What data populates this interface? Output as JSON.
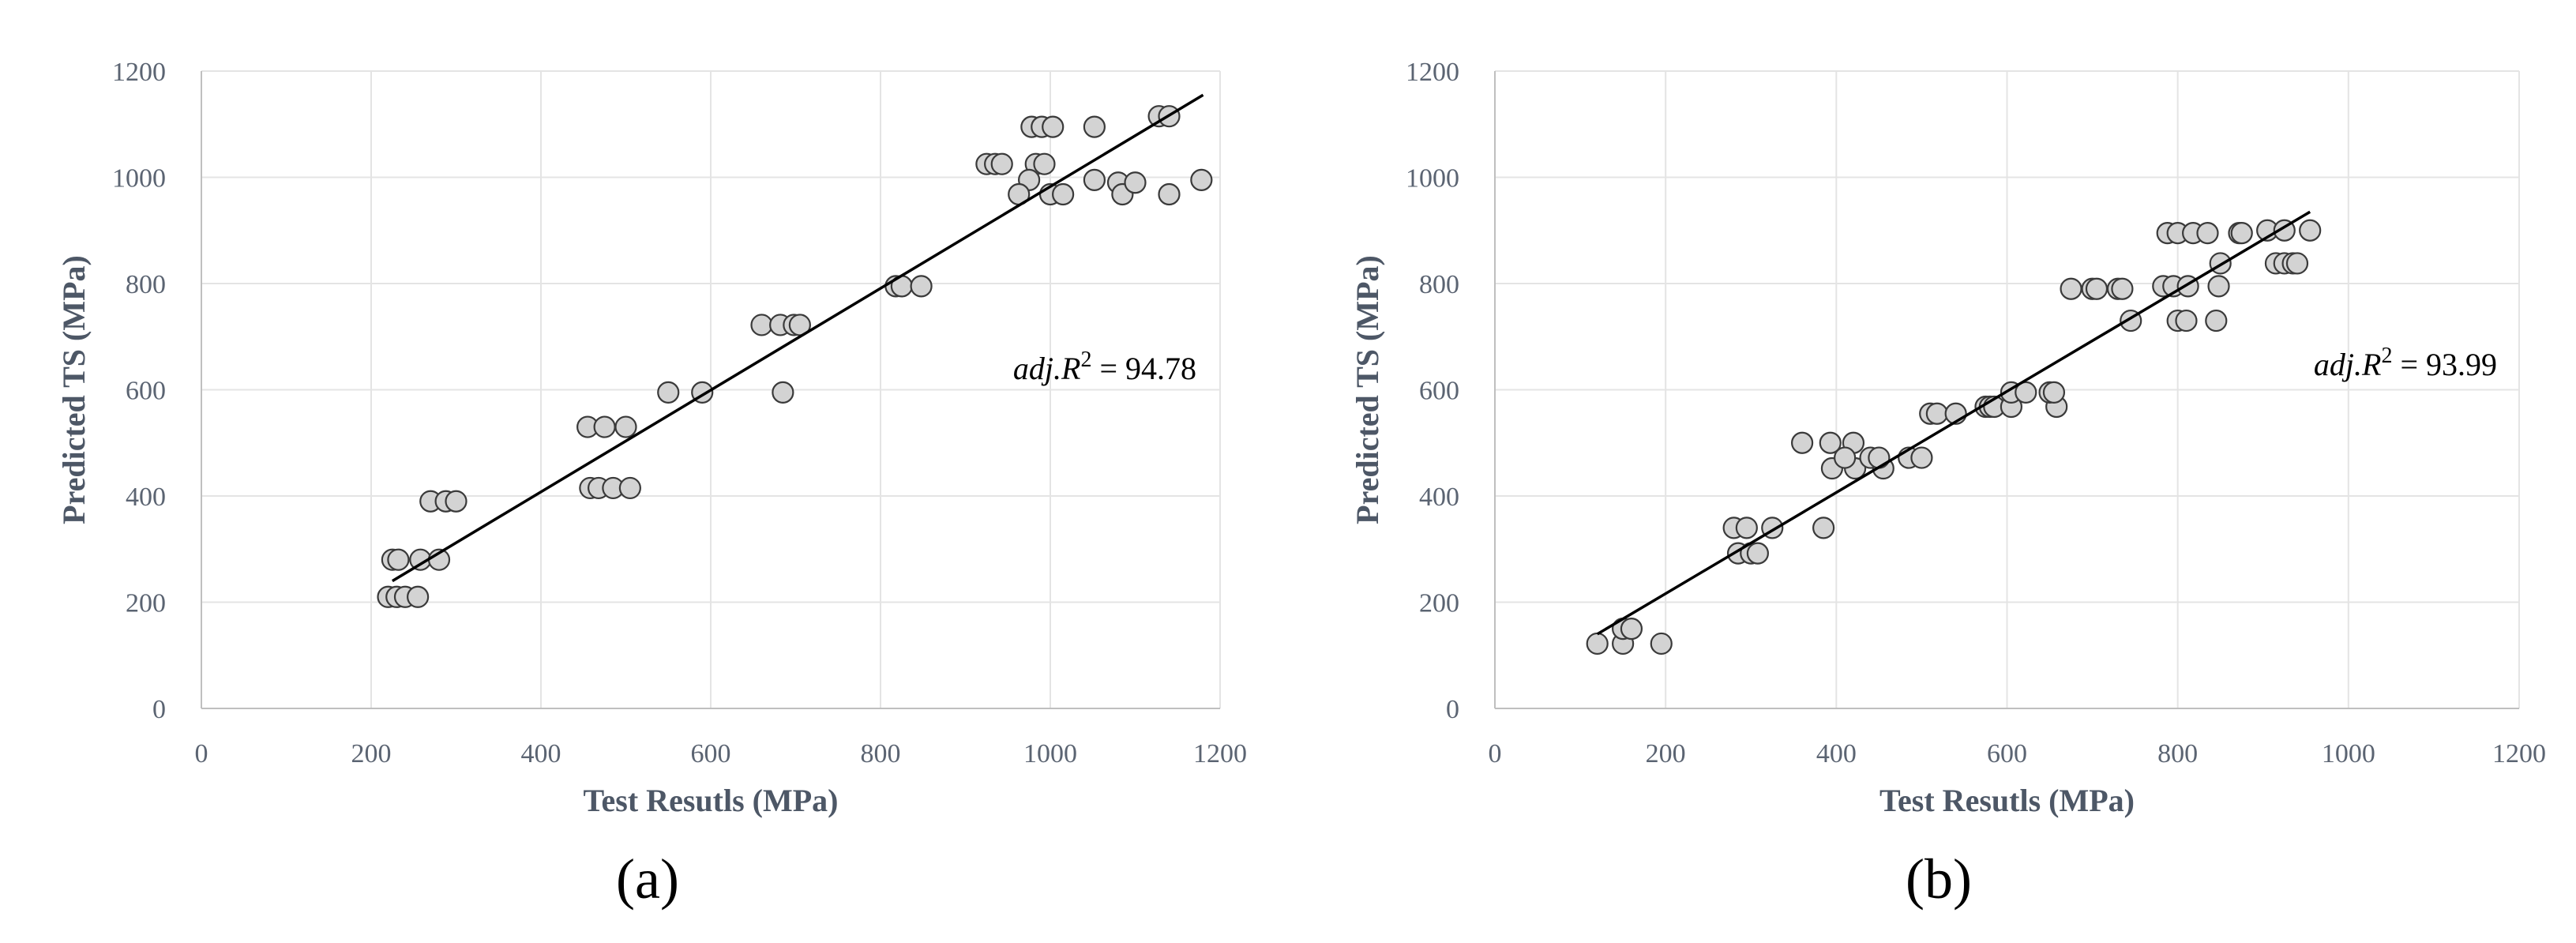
{
  "chart_data": [
    {
      "type": "scatter",
      "panel_label": "(a)",
      "xlabel": "Test Resutls (MPa)",
      "ylabel": "Predicted  TS (MPa)",
      "xlim": [
        0,
        1200
      ],
      "ylim": [
        0,
        1200
      ],
      "xticks": [
        "0",
        "200",
        "400",
        "600",
        "800",
        "1000",
        "1200"
      ],
      "yticks": [
        "0",
        "200",
        "400",
        "600",
        "800",
        "1000",
        "1200"
      ],
      "grid": true,
      "annotation": {
        "prefix": "adj.R",
        "sup": "2",
        "suffix": " = 94.78"
      },
      "trendline": {
        "x": [
          225,
          1180
        ],
        "y": [
          240,
          1155
        ]
      },
      "points": [
        [
          220,
          210
        ],
        [
          230,
          210
        ],
        [
          240,
          210
        ],
        [
          255,
          210
        ],
        [
          225,
          280
        ],
        [
          232,
          280
        ],
        [
          258,
          280
        ],
        [
          280,
          280
        ],
        [
          270,
          390
        ],
        [
          288,
          390
        ],
        [
          300,
          390
        ],
        [
          455,
          530
        ],
        [
          475,
          530
        ],
        [
          500,
          530
        ],
        [
          458,
          415
        ],
        [
          468,
          415
        ],
        [
          485,
          415
        ],
        [
          505,
          415
        ],
        [
          550,
          595
        ],
        [
          590,
          595
        ],
        [
          685,
          595
        ],
        [
          660,
          722
        ],
        [
          682,
          722
        ],
        [
          698,
          722
        ],
        [
          705,
          722
        ],
        [
          818,
          795
        ],
        [
          825,
          795
        ],
        [
          848,
          795
        ],
        [
          925,
          1025
        ],
        [
          935,
          1025
        ],
        [
          943,
          1025
        ],
        [
          983,
          1025
        ],
        [
          993,
          1025
        ],
        [
          978,
          1095
        ],
        [
          990,
          1095
        ],
        [
          1003,
          1095
        ],
        [
          1052,
          1095
        ],
        [
          975,
          995
        ],
        [
          963,
          968
        ],
        [
          1000,
          968
        ],
        [
          1015,
          968
        ],
        [
          1052,
          995
        ],
        [
          1080,
          990
        ],
        [
          1085,
          968
        ],
        [
          1100,
          990
        ],
        [
          1128,
          1115
        ],
        [
          1140,
          1115
        ],
        [
          1140,
          968
        ],
        [
          1178,
          995
        ]
      ]
    },
    {
      "type": "scatter",
      "panel_label": "(b)",
      "xlabel": "Test Resutls (MPa)",
      "ylabel": "Predicted  TS (MPa)",
      "xlim": [
        0,
        1200
      ],
      "ylim": [
        0,
        1200
      ],
      "xticks": [
        "0",
        "200",
        "400",
        "600",
        "800",
        "1000",
        "1200"
      ],
      "yticks": [
        "0",
        "200",
        "400",
        "600",
        "800",
        "1000",
        "1200"
      ],
      "grid": true,
      "annotation": {
        "prefix": "adj.R",
        "sup": "2",
        "suffix": " = 93.99"
      },
      "trendline": {
        "x": [
          120,
          955
        ],
        "y": [
          140,
          935
        ]
      },
      "points": [
        [
          120,
          122
        ],
        [
          150,
          122
        ],
        [
          195,
          122
        ],
        [
          150,
          150
        ],
        [
          160,
          150
        ],
        [
          280,
          340
        ],
        [
          295,
          340
        ],
        [
          325,
          340
        ],
        [
          385,
          340
        ],
        [
          285,
          292
        ],
        [
          300,
          292
        ],
        [
          308,
          292
        ],
        [
          360,
          500
        ],
        [
          393,
          500
        ],
        [
          420,
          500
        ],
        [
          395,
          452
        ],
        [
          422,
          452
        ],
        [
          455,
          452
        ],
        [
          410,
          472
        ],
        [
          440,
          472
        ],
        [
          450,
          472
        ],
        [
          485,
          472
        ],
        [
          500,
          472
        ],
        [
          510,
          555
        ],
        [
          518,
          555
        ],
        [
          540,
          555
        ],
        [
          575,
          568
        ],
        [
          580,
          568
        ],
        [
          585,
          568
        ],
        [
          605,
          568
        ],
        [
          658,
          568
        ],
        [
          605,
          595
        ],
        [
          622,
          595
        ],
        [
          650,
          595
        ],
        [
          655,
          595
        ],
        [
          675,
          790
        ],
        [
          700,
          790
        ],
        [
          705,
          790
        ],
        [
          730,
          790
        ],
        [
          735,
          790
        ],
        [
          745,
          730
        ],
        [
          800,
          730
        ],
        [
          810,
          730
        ],
        [
          845,
          730
        ],
        [
          783,
          795
        ],
        [
          795,
          795
        ],
        [
          812,
          795
        ],
        [
          848,
          795
        ],
        [
          788,
          895
        ],
        [
          800,
          895
        ],
        [
          818,
          895
        ],
        [
          835,
          895
        ],
        [
          850,
          838
        ],
        [
          872,
          895
        ],
        [
          875,
          895
        ],
        [
          905,
          900
        ],
        [
          925,
          900
        ],
        [
          915,
          838
        ],
        [
          925,
          838
        ],
        [
          935,
          838
        ],
        [
          940,
          838
        ],
        [
          955,
          900
        ]
      ]
    }
  ]
}
